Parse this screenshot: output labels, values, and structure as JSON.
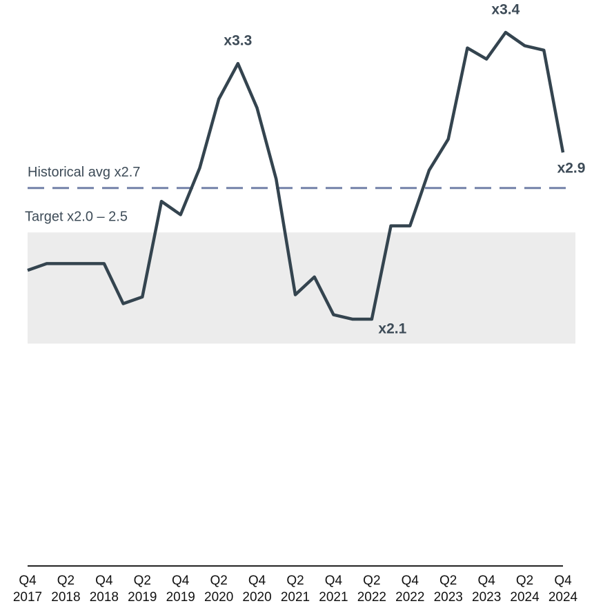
{
  "chart_data": {
    "type": "line",
    "categories": [
      [
        "Q4",
        "2017"
      ],
      null,
      [
        "Q2",
        "2018"
      ],
      null,
      [
        "Q4",
        "2018"
      ],
      null,
      [
        "Q2",
        "2019"
      ],
      null,
      [
        "Q4",
        "2019"
      ],
      null,
      [
        "Q2",
        "2020"
      ],
      null,
      [
        "Q4",
        "2020"
      ],
      null,
      [
        "Q2",
        "2021"
      ],
      null,
      [
        "Q4",
        "2021"
      ],
      null,
      [
        "Q2",
        "2022"
      ],
      null,
      [
        "Q4",
        "2022"
      ],
      null,
      [
        "Q2",
        "2023"
      ],
      null,
      [
        "Q4",
        "2023"
      ],
      null,
      [
        "Q2",
        "2024"
      ],
      null,
      [
        "Q4",
        "2024"
      ]
    ],
    "series": [
      {
        "color": "#34444f",
        "values": [
          2.33,
          2.36,
          2.36,
          2.36,
          2.36,
          2.18,
          2.21,
          2.64,
          2.58,
          2.79,
          3.1,
          3.26,
          3.06,
          2.74,
          2.22,
          2.3,
          2.13,
          2.11,
          2.11,
          2.53,
          2.53,
          2.78,
          2.92,
          3.33,
          3.28,
          3.4,
          3.34,
          3.32,
          2.86
        ],
        "value_labels": [
          null,
          null,
          null,
          null,
          null,
          null,
          null,
          null,
          null,
          null,
          null,
          "x3.3",
          null,
          null,
          null,
          null,
          null,
          null,
          "x2.1",
          null,
          null,
          null,
          null,
          null,
          null,
          "x3.4",
          null,
          null,
          "x2.9"
        ]
      }
    ],
    "ylim": [
      1.0,
      3.4
    ],
    "reference_line": {
      "label": "Historical avg x2.7",
      "value": 2.7,
      "color": "#7381a8"
    },
    "target_band": {
      "label": "Target x2.0 – 2.5",
      "low": 2.0,
      "high": 2.5,
      "color": "#ececec"
    }
  }
}
